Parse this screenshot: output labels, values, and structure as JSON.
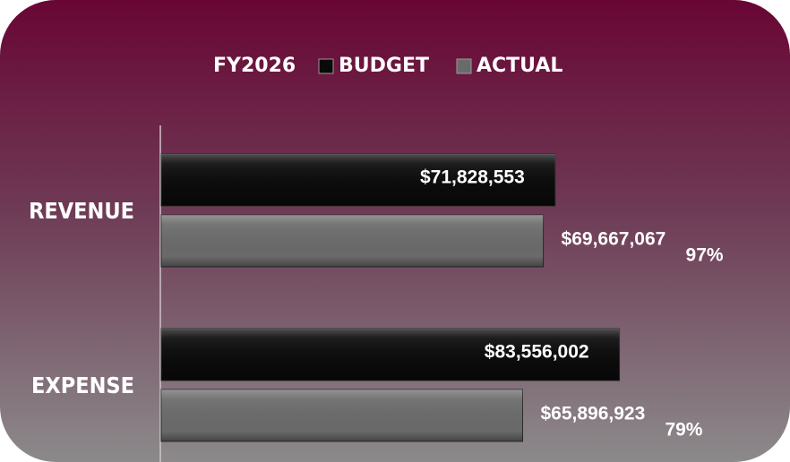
{
  "chart_data": {
    "type": "hbar",
    "title": "FY2026",
    "categories": [
      "REVENUE",
      "EXPENSE"
    ],
    "series": [
      {
        "name": "BUDGET",
        "color": "#0a0a0a",
        "values": [
          71828553,
          83556002
        ],
        "value_labels": [
          "$71,828,553",
          "$83,556,002"
        ]
      },
      {
        "name": "ACTUAL",
        "color": "#6a6a6a",
        "values": [
          69667067,
          65896923
        ],
        "value_labels": [
          "$69,667,067",
          "$65,896,923"
        ]
      }
    ],
    "ratio_labels": [
      "97%",
      "79%"
    ],
    "xlim": [
      0,
      114000000
    ]
  }
}
